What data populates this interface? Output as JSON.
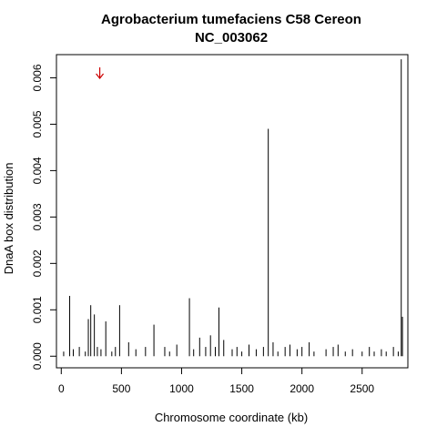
{
  "chart_data": {
    "type": "bar",
    "title": "Agrobacterium tumefaciens C58 Cereon",
    "subtitle": "NC_003062",
    "xlabel": "Chromosome coordinate (kb)",
    "ylabel": "DnaA box distribution",
    "xlim": [
      -40,
      2880
    ],
    "ylim": [
      -0.00025,
      0.0065
    ],
    "xticks": [
      0,
      500,
      1000,
      1500,
      2000,
      2500
    ],
    "yticks": [
      "0.000",
      "0.001",
      "0.002",
      "0.003",
      "0.004",
      "0.005",
      "0.006"
    ],
    "grid": false,
    "bar_color": "#000000",
    "annotation": {
      "type": "arrow",
      "x": 320,
      "color": "#cc0000"
    },
    "x": [
      70,
      225,
      245,
      275,
      370,
      485,
      770,
      1065,
      1310,
      1720,
      2825,
      2835,
      20,
      100,
      150,
      200,
      300,
      330,
      420,
      450,
      560,
      620,
      700,
      860,
      900,
      960,
      1100,
      1150,
      1200,
      1240,
      1280,
      1350,
      1420,
      1460,
      1500,
      1560,
      1620,
      1680,
      1760,
      1800,
      1860,
      1900,
      1960,
      2000,
      2060,
      2100,
      2200,
      2260,
      2300,
      2360,
      2420,
      2500,
      2560,
      2600,
      2660,
      2700,
      2760,
      2800
    ],
    "values": [
      0.0013,
      0.0008,
      0.0011,
      0.0009,
      0.00075,
      0.0011,
      0.00068,
      0.00125,
      0.00105,
      0.0049,
      0.0064,
      0.00085,
      0.0001,
      0.00015,
      0.0002,
      0.0001,
      0.0002,
      0.00015,
      0.0001,
      0.0002,
      0.0003,
      0.00015,
      0.0002,
      0.0002,
      0.0001,
      0.00025,
      0.00015,
      0.0004,
      0.0002,
      0.00045,
      0.0002,
      0.00035,
      0.00015,
      0.0002,
      0.0001,
      0.00025,
      0.00015,
      0.0002,
      0.0003,
      0.0001,
      0.0002,
      0.00025,
      0.00015,
      0.0002,
      0.0003,
      0.0001,
      0.00015,
      0.0002,
      0.00025,
      0.0001,
      0.00015,
      0.0001,
      0.0002,
      0.0001,
      0.00015,
      0.0001,
      0.0002,
      0.0001
    ]
  }
}
